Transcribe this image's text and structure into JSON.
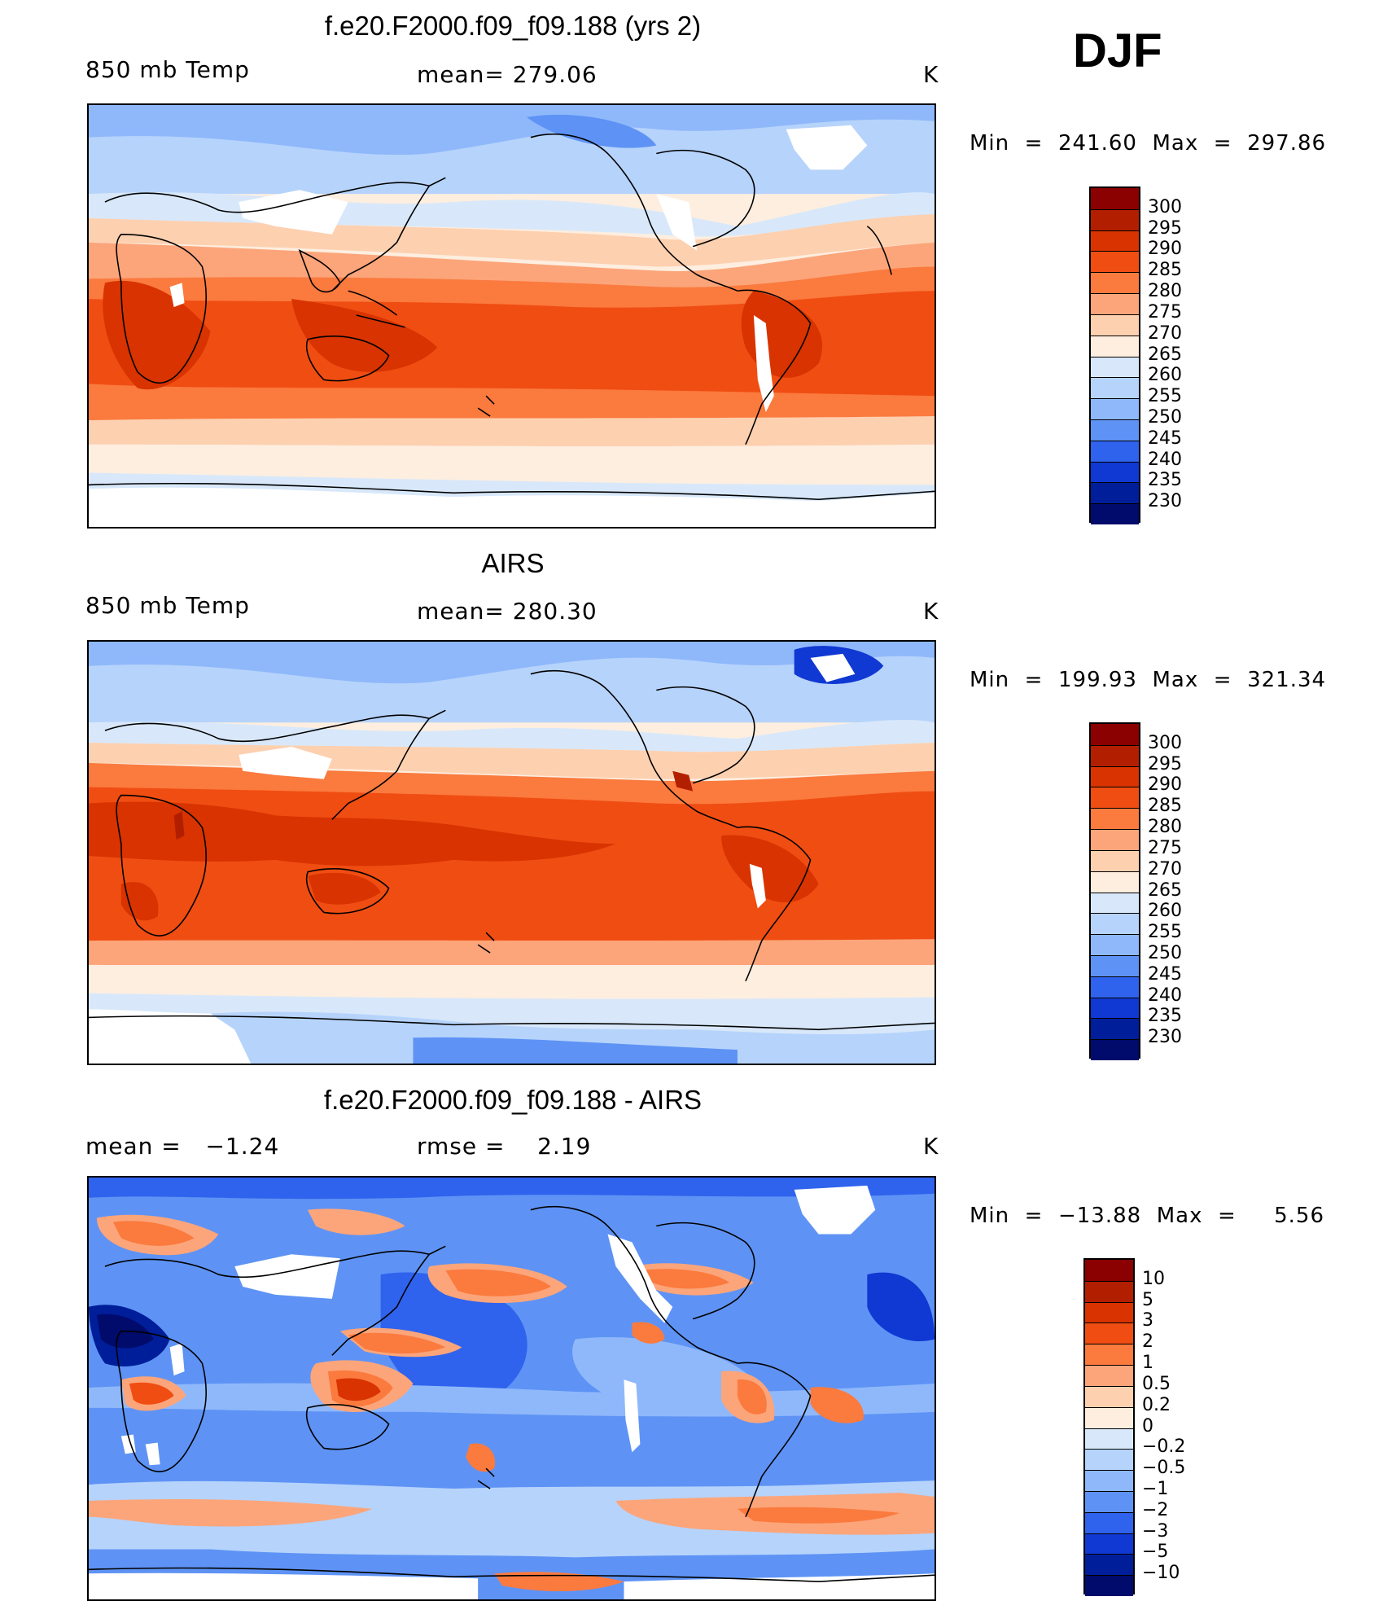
{
  "season": "DJF",
  "panels": [
    {
      "title": "f.e20.F2000.f09_f09.188 (yrs 2)",
      "left_label": "850 mb Temp",
      "center_label": "mean= 279.06",
      "unit": "K",
      "minmax": "Min  =  241.60  Max  =  297.86",
      "colorbar_levels": [
        "300",
        "295",
        "290",
        "285",
        "280",
        "275",
        "270",
        "265",
        "260",
        "255",
        "250",
        "245",
        "240",
        "235",
        "230"
      ],
      "colorbar_colors": [
        "#8b0000",
        "#b21f00",
        "#d83300",
        "#f04d12",
        "#fb7a3e",
        "#fca57a",
        "#fdd0b0",
        "#fdeee0",
        "#d8e8fa",
        "#b6d3fb",
        "#8fb8fb",
        "#5e93f5",
        "#2f63ed",
        "#1038d2",
        "#001e9a",
        "#000b6b"
      ]
    },
    {
      "title": "AIRS",
      "left_label": "850 mb Temp",
      "center_label": "mean= 280.30",
      "unit": "K",
      "minmax": "Min  =  199.93  Max  =  321.34",
      "colorbar_levels": [
        "300",
        "295",
        "290",
        "285",
        "280",
        "275",
        "270",
        "265",
        "260",
        "255",
        "250",
        "245",
        "240",
        "235",
        "230"
      ],
      "colorbar_colors": [
        "#8b0000",
        "#b21f00",
        "#d83300",
        "#f04d12",
        "#fb7a3e",
        "#fca57a",
        "#fdd0b0",
        "#fdeee0",
        "#d8e8fa",
        "#b6d3fb",
        "#8fb8fb",
        "#5e93f5",
        "#2f63ed",
        "#1038d2",
        "#001e9a",
        "#000b6b"
      ]
    },
    {
      "title": "f.e20.F2000.f09_f09.188 - AIRS",
      "left_label": "mean =   −1.24",
      "center_label": "rmse =    2.19",
      "unit": "K",
      "minmax": "Min  =  −13.88  Max  =     5.56",
      "colorbar_levels": [
        "10",
        "5",
        "3",
        "2",
        "1",
        "0.5",
        "0.2",
        "0",
        "−0.2",
        "−0.5",
        "−1",
        "−2",
        "−3",
        "−5",
        "−10"
      ],
      "colorbar_colors": [
        "#8b0000",
        "#b21f00",
        "#d83300",
        "#f04d12",
        "#fb7a3e",
        "#fca57a",
        "#fdd0b0",
        "#fdeee0",
        "#d8e8fa",
        "#b6d3fb",
        "#8fb8fb",
        "#5e93f5",
        "#2f63ed",
        "#1038d2",
        "#001e9a",
        "#000b6b"
      ]
    }
  ]
}
